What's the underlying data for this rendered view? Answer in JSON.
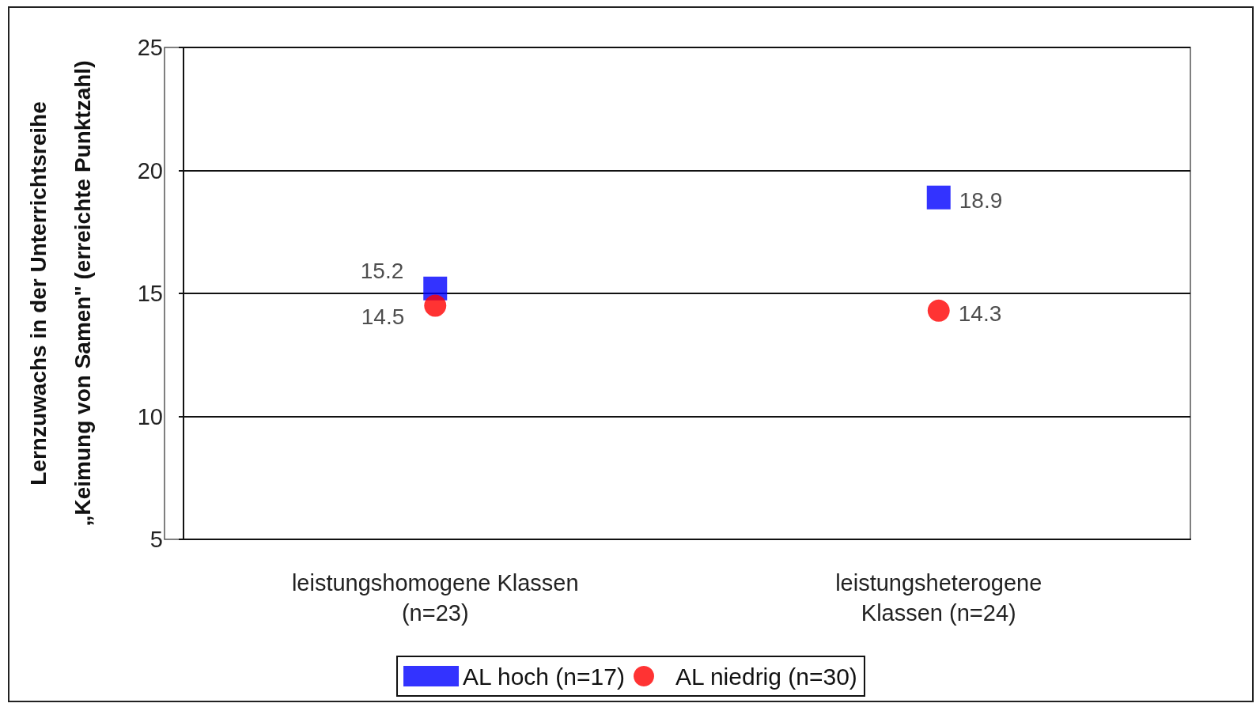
{
  "chart_data": {
    "type": "scatter",
    "ylabel": "Lernzuwachs in der Unterrichtsreihe\n„Keimung von Samen\" (erreichte Punktzahl)",
    "categories": [
      "leistungshomogene Klassen\n(n=23)",
      "leistungsheterogene\nKlassen (n=24)"
    ],
    "series": [
      {
        "name": "AL hoch (n=17)",
        "color": "#0000ff",
        "marker": "square",
        "values": [
          15.2,
          18.9
        ]
      },
      {
        "name": "AL niedrig (n=30)",
        "color": "#ff0000",
        "marker": "circle",
        "values": [
          14.5,
          14.3
        ]
      }
    ],
    "ylim": [
      5,
      25
    ],
    "yticks": [
      5,
      10,
      15,
      20,
      25
    ],
    "grid": "y",
    "legend": "bottom",
    "data_labels": true
  }
}
